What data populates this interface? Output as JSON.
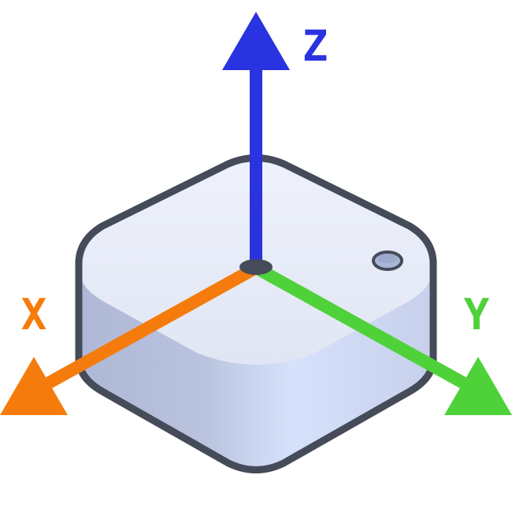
{
  "axes": {
    "x": {
      "label": "X",
      "color": "#f57c0c"
    },
    "y": {
      "label": "Y",
      "color": "#4fd13a"
    },
    "z": {
      "label": "Z",
      "color": "#2a33e0"
    }
  },
  "device": {
    "outline_color": "#454b58",
    "top_color": "#e6eaf7",
    "side_color": "#b9c2dc",
    "led_color": "#a9b7d6"
  }
}
